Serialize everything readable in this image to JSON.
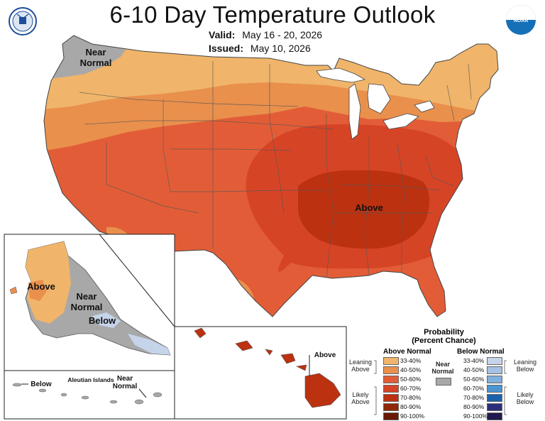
{
  "title": "6-10 Day Temperature Outlook",
  "valid_label": "Valid:",
  "valid_value": "May 16 - 20, 2026",
  "issued_label": "Issued:",
  "issued_value": "May 10, 2026",
  "map_labels": {
    "conus_near_normal": "Near\nNormal",
    "conus_above": "Above",
    "alaska_above": "Above",
    "alaska_near_normal": "Near\nNormal",
    "alaska_below": "Below",
    "aleutian_below": "Below",
    "aleutian_islands": "Aleutian Islands",
    "aleutian_near_normal": "Near\nNormal",
    "hawaii_above": "Above"
  },
  "legend": {
    "title_line1": "Probability",
    "title_line2": "(Percent Chance)",
    "above_header": "Above Normal",
    "below_header": "Below Normal",
    "near_normal_label": "Near\nNormal",
    "near_normal_color": "#a8a8a8",
    "leaning_above": "Leaning\nAbove",
    "likely_above": "Likely\nAbove",
    "leaning_below": "Leaning\nBelow",
    "likely_below": "Likely\nBelow",
    "above_bins": [
      {
        "label": "33-40%",
        "color": "#f0b56a"
      },
      {
        "label": "40-50%",
        "color": "#e9904d"
      },
      {
        "label": "50-60%",
        "color": "#e25d37"
      },
      {
        "label": "60-70%",
        "color": "#d64426"
      },
      {
        "label": "70-80%",
        "color": "#bc3110"
      },
      {
        "label": "80-90%",
        "color": "#8f2708"
      },
      {
        "label": "90-100%",
        "color": "#6a1a02"
      }
    ],
    "below_bins": [
      {
        "label": "33-40%",
        "color": "#c6d4ea"
      },
      {
        "label": "40-50%",
        "color": "#a6c1e2"
      },
      {
        "label": "50-60%",
        "color": "#7fb0de"
      },
      {
        "label": "60-70%",
        "color": "#4b95d2"
      },
      {
        "label": "70-80%",
        "color": "#1a63ac"
      },
      {
        "label": "80-90%",
        "color": "#2b2e7a"
      },
      {
        "label": "90-100%",
        "color": "#211a4e"
      }
    ]
  },
  "logos": {
    "left": "department-of-commerce-seal",
    "right": "noaa-logo",
    "right_text": "NOAA"
  },
  "colors": {
    "water": "#ffffff",
    "outline": "#444444"
  }
}
